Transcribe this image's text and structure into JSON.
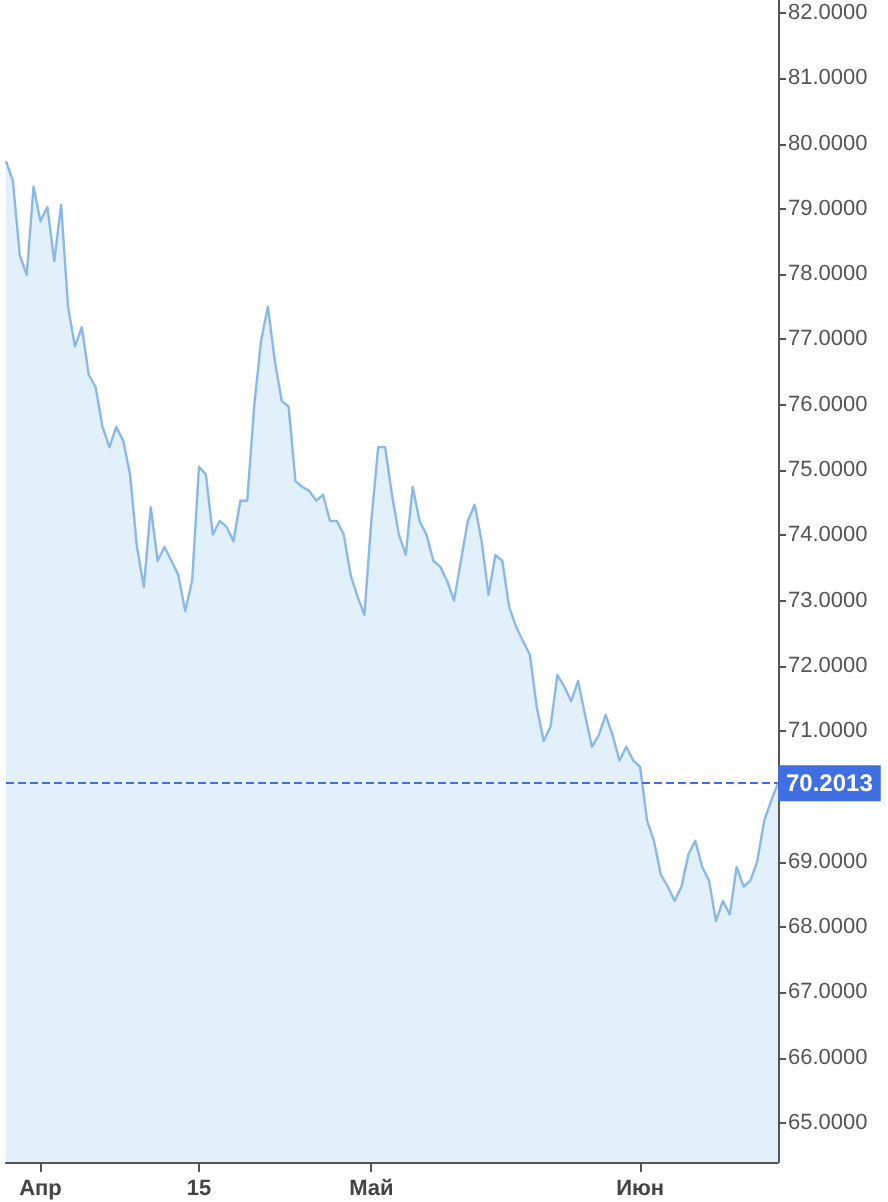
{
  "chart_data": {
    "type": "area",
    "color": "#8ab8e8",
    "categories": [
      null,
      null,
      null,
      null,
      null,
      "Апр",
      null,
      null,
      null,
      null,
      null,
      null,
      null,
      null,
      null,
      null,
      null,
      null,
      null,
      null,
      null,
      null,
      null,
      null,
      null,
      null,
      null,
      null,
      "15",
      null,
      null,
      null,
      null,
      null,
      null,
      null,
      null,
      null,
      null,
      null,
      null,
      null,
      null,
      null,
      null,
      null,
      null,
      null,
      null,
      null,
      null,
      null,
      null,
      "Май",
      null,
      null,
      null,
      null,
      null,
      null,
      null,
      null,
      null,
      null,
      null,
      null,
      null,
      null,
      null,
      null,
      null,
      null,
      null,
      null,
      null,
      null,
      null,
      null,
      null,
      null,
      null,
      null,
      null,
      null,
      null,
      null,
      null,
      null,
      null,
      null,
      null,
      null,
      "Июн",
      null,
      null,
      null,
      null,
      null,
      null,
      null,
      null,
      null,
      null,
      null,
      null,
      null,
      null,
      null,
      null,
      null,
      null,
      null,
      null
    ],
    "values": [
      79.73,
      79.43,
      78.29,
      77.99,
      79.34,
      78.81,
      79.03,
      78.2,
      79.06,
      77.5,
      76.89,
      77.19,
      76.46,
      76.27,
      75.66,
      75.35,
      75.66,
      75.45,
      74.93,
      73.82,
      73.21,
      74.43,
      73.61,
      73.82,
      73.61,
      73.39,
      72.84,
      73.3,
      75.05,
      74.93,
      74.01,
      74.22,
      74.13,
      73.91,
      74.53,
      74.53,
      75.97,
      76.98,
      77.5,
      76.67,
      76.06,
      75.97,
      74.83,
      74.74,
      74.68,
      74.53,
      74.62,
      74.22,
      74.22,
      74.01,
      73.39,
      73.06,
      72.78,
      74.22,
      75.35,
      75.35,
      74.62,
      74.01,
      73.7,
      74.74,
      74.22,
      74.01,
      73.61,
      73.52,
      73.3,
      73.0,
      73.61,
      74.22,
      74.47,
      73.91,
      73.09,
      73.7,
      73.61,
      72.9,
      72.6,
      72.38,
      72.17,
      71.37,
      70.85,
      71.07,
      71.86,
      71.68,
      71.46,
      71.77,
      71.25,
      70.76,
      70.94,
      71.25,
      70.94,
      70.55,
      70.76,
      70.55,
      70.45,
      69.63,
      69.32,
      68.8,
      68.62,
      68.4,
      68.62,
      69.11,
      69.32,
      68.92,
      68.71,
      68.09,
      68.4,
      68.19,
      68.92,
      68.62,
      68.71,
      69.01,
      69.63,
      69.93,
      70.2
    ],
    "ylim": [
      64.4,
      82.2
    ],
    "yticks": [
      {
        "value": 65,
        "label": "65.0000"
      },
      {
        "value": 66,
        "label": "66.0000"
      },
      {
        "value": 67,
        "label": "67.0000"
      },
      {
        "value": 68,
        "label": "68.0000"
      },
      {
        "value": 69,
        "label": "69.0000"
      },
      {
        "value": 70,
        "label": null
      },
      {
        "value": 71,
        "label": "71.0000"
      },
      {
        "value": 72,
        "label": "72.0000"
      },
      {
        "value": 73,
        "label": "73.0000"
      },
      {
        "value": 74,
        "label": "74.0000"
      },
      {
        "value": 75,
        "label": "75.0000"
      },
      {
        "value": 76,
        "label": "76.0000"
      },
      {
        "value": 77,
        "label": "77.0000"
      },
      {
        "value": 78,
        "label": "78.0000"
      },
      {
        "value": 79,
        "label": "79.0000"
      },
      {
        "value": 80,
        "label": "80.0000"
      },
      {
        "value": 81,
        "label": "81.0000"
      },
      {
        "value": 82,
        "label": "82.0000"
      }
    ],
    "ref_lines": [
      {
        "axis": "y",
        "value": 70.2013,
        "label": "70.2013",
        "color": "#3f6fe0",
        "line_style": "dashed"
      }
    ],
    "grid": false,
    "marker": "none"
  }
}
